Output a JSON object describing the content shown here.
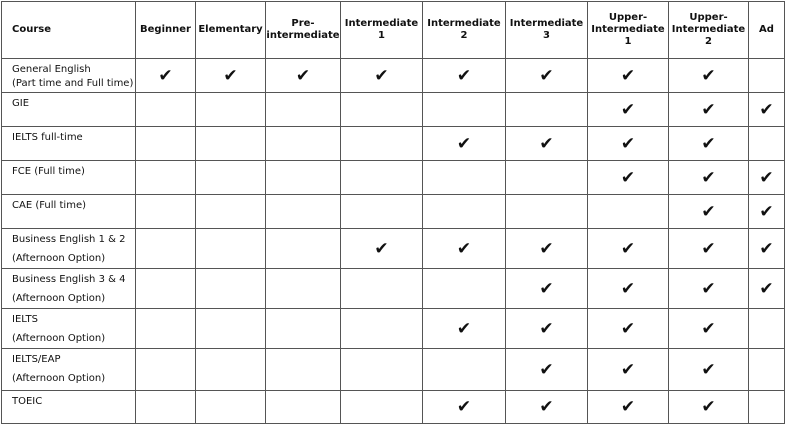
{
  "header": [
    "Course",
    "Beginner",
    "Elementary",
    "Pre-\nintermediate",
    "Intermediate 1",
    "Intermediate 2",
    "Intermediate 3",
    "Upper-\nIntermediate\n1",
    "Upper-\nIntermediate\n2",
    "Ad"
  ],
  "check_symbol": "✔",
  "rows": [
    {
      "course": "General English\n(Part time and Full time)",
      "checks": [
        1,
        1,
        1,
        1,
        1,
        1,
        1,
        1,
        0
      ]
    },
    {
      "course": "GIE",
      "checks": [
        0,
        0,
        0,
        0,
        0,
        0,
        1,
        1,
        1
      ]
    },
    {
      "course": "IELTS full-time",
      "checks": [
        0,
        0,
        0,
        0,
        1,
        1,
        1,
        1,
        0
      ]
    },
    {
      "course": "FCE (Full time)",
      "checks": [
        0,
        0,
        0,
        0,
        0,
        0,
        1,
        1,
        1
      ]
    },
    {
      "course": "CAE (Full time)",
      "checks": [
        0,
        0,
        0,
        0,
        0,
        0,
        0,
        1,
        1
      ]
    },
    {
      "course": "Business English 1 & 2\n(Afternoon Option)",
      "checks": [
        0,
        0,
        0,
        1,
        1,
        1,
        1,
        1,
        1
      ]
    },
    {
      "course": "Business English 3 & 4\n(Afternoon Option)",
      "checks": [
        0,
        0,
        0,
        0,
        0,
        1,
        1,
        1,
        1
      ]
    },
    {
      "course": "IELTS\n(Afternoon Option)",
      "checks": [
        0,
        0,
        0,
        0,
        1,
        1,
        1,
        1,
        0
      ]
    },
    {
      "course": "IELTS/EAP\n(Afternoon Option)",
      "checks": [
        0,
        0,
        0,
        0,
        0,
        1,
        1,
        1,
        0
      ]
    },
    {
      "course": "TOEIC",
      "checks": [
        0,
        0,
        0,
        0,
        1,
        1,
        1,
        1,
        0
      ]
    }
  ]
}
